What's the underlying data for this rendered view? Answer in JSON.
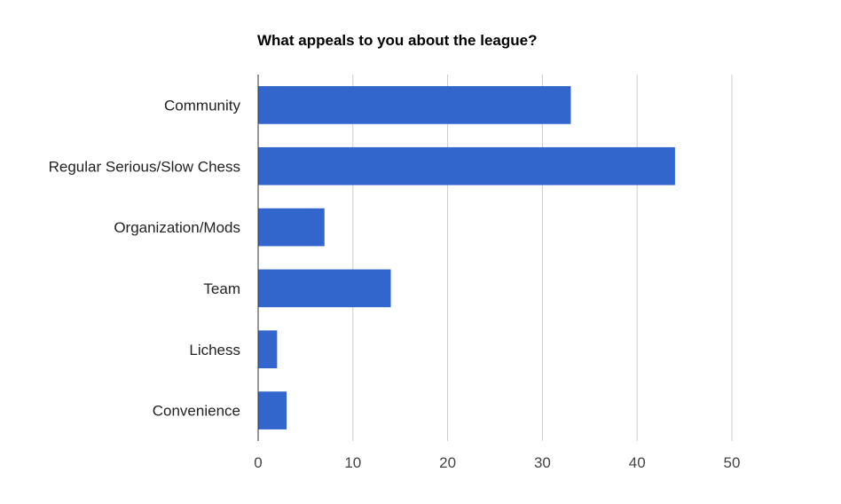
{
  "chart_data": {
    "type": "bar",
    "orientation": "horizontal",
    "title": "What appeals to you about the league?",
    "categories": [
      "Community",
      "Regular Serious/Slow Chess",
      "Organization/Mods",
      "Team",
      "Lichess",
      "Convenience"
    ],
    "values": [
      33,
      44,
      7,
      14,
      2,
      3
    ],
    "xlim": [
      0,
      50
    ],
    "xticks": [
      0,
      10,
      20,
      30,
      40,
      50
    ],
    "xlabel": "",
    "ylabel": "",
    "grid": true,
    "legend": "none",
    "colors": {
      "bar": "#3366cc",
      "grid": "#cccccc",
      "axis": "#333333"
    }
  }
}
